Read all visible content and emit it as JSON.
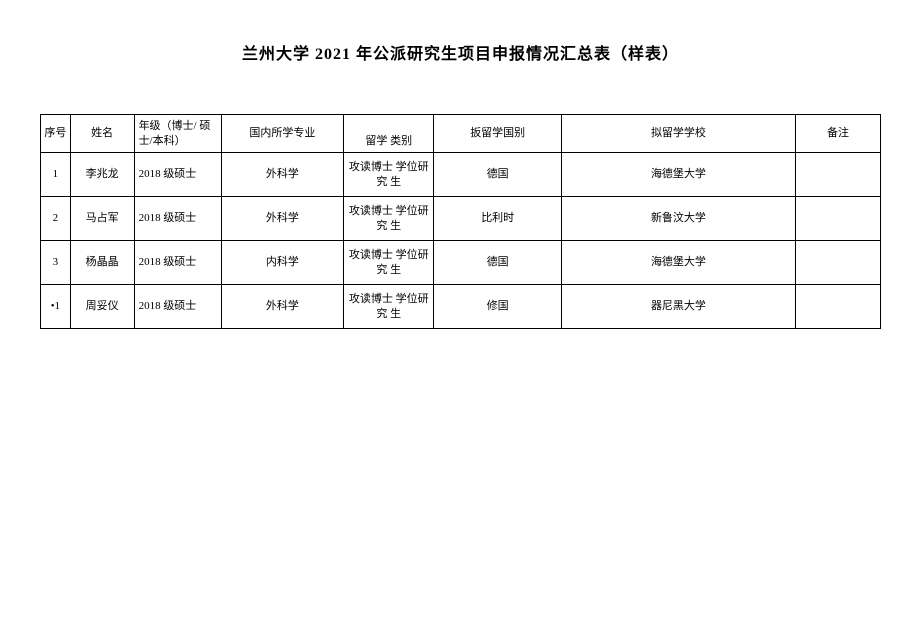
{
  "title": "兰州大学 2021 年公派研究生项目申报情况汇总表（样表）",
  "table": {
    "headers": {
      "seq": "序号",
      "name": "姓名",
      "grade": "年级（博士/ 硕士/本科）",
      "major": "国内所学专业",
      "category": "留学  类别",
      "country": "扳留学国别",
      "school": "拟留学学校",
      "remark": "备注"
    },
    "rows": [
      {
        "seq": "1",
        "name": "李兆龙",
        "grade": "2018 级硕士",
        "major": "外科学",
        "category": "攻读博士 学位研究\n生",
        "country": "德国",
        "school": "海德堡大学",
        "remark": ""
      },
      {
        "seq": "2",
        "name": "马占军",
        "grade": "2018 级硕士",
        "major": "外科学",
        "category": "攻读博士 学位研究\n生",
        "country": "比利时",
        "school": "新鲁汶大学",
        "remark": ""
      },
      {
        "seq": "3",
        "name": "杨晶晶",
        "grade": "2018 级硕士",
        "major": "内科学",
        "category": "攻读博士 学位研究\n生",
        "country": "德国",
        "school": "海德堡大学",
        "remark": ""
      },
      {
        "seq": "•1",
        "name": "周妥仪",
        "grade": "2018 级硕士",
        "major": "外科学",
        "category": "攻读博士 学位研究  生",
        "country": "修国",
        "school": "器尼黑大学",
        "remark": ""
      }
    ]
  }
}
